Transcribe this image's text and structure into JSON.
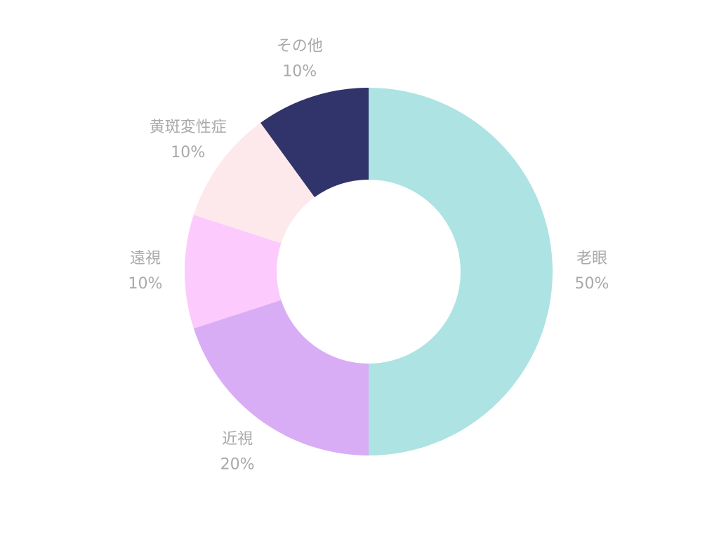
{
  "chart_data": {
    "type": "donut",
    "categories": [
      "老眼",
      "近視",
      "遠視",
      "黄斑変性症",
      "その他"
    ],
    "values": [
      50,
      20,
      10,
      10,
      10
    ],
    "value_labels": [
      "50%",
      "20%",
      "10%",
      "10%",
      "10%"
    ],
    "colors": [
      "#ade3e2",
      "#d9adf5",
      "#fdcafe",
      "#fde9ec",
      "#31346b"
    ]
  }
}
